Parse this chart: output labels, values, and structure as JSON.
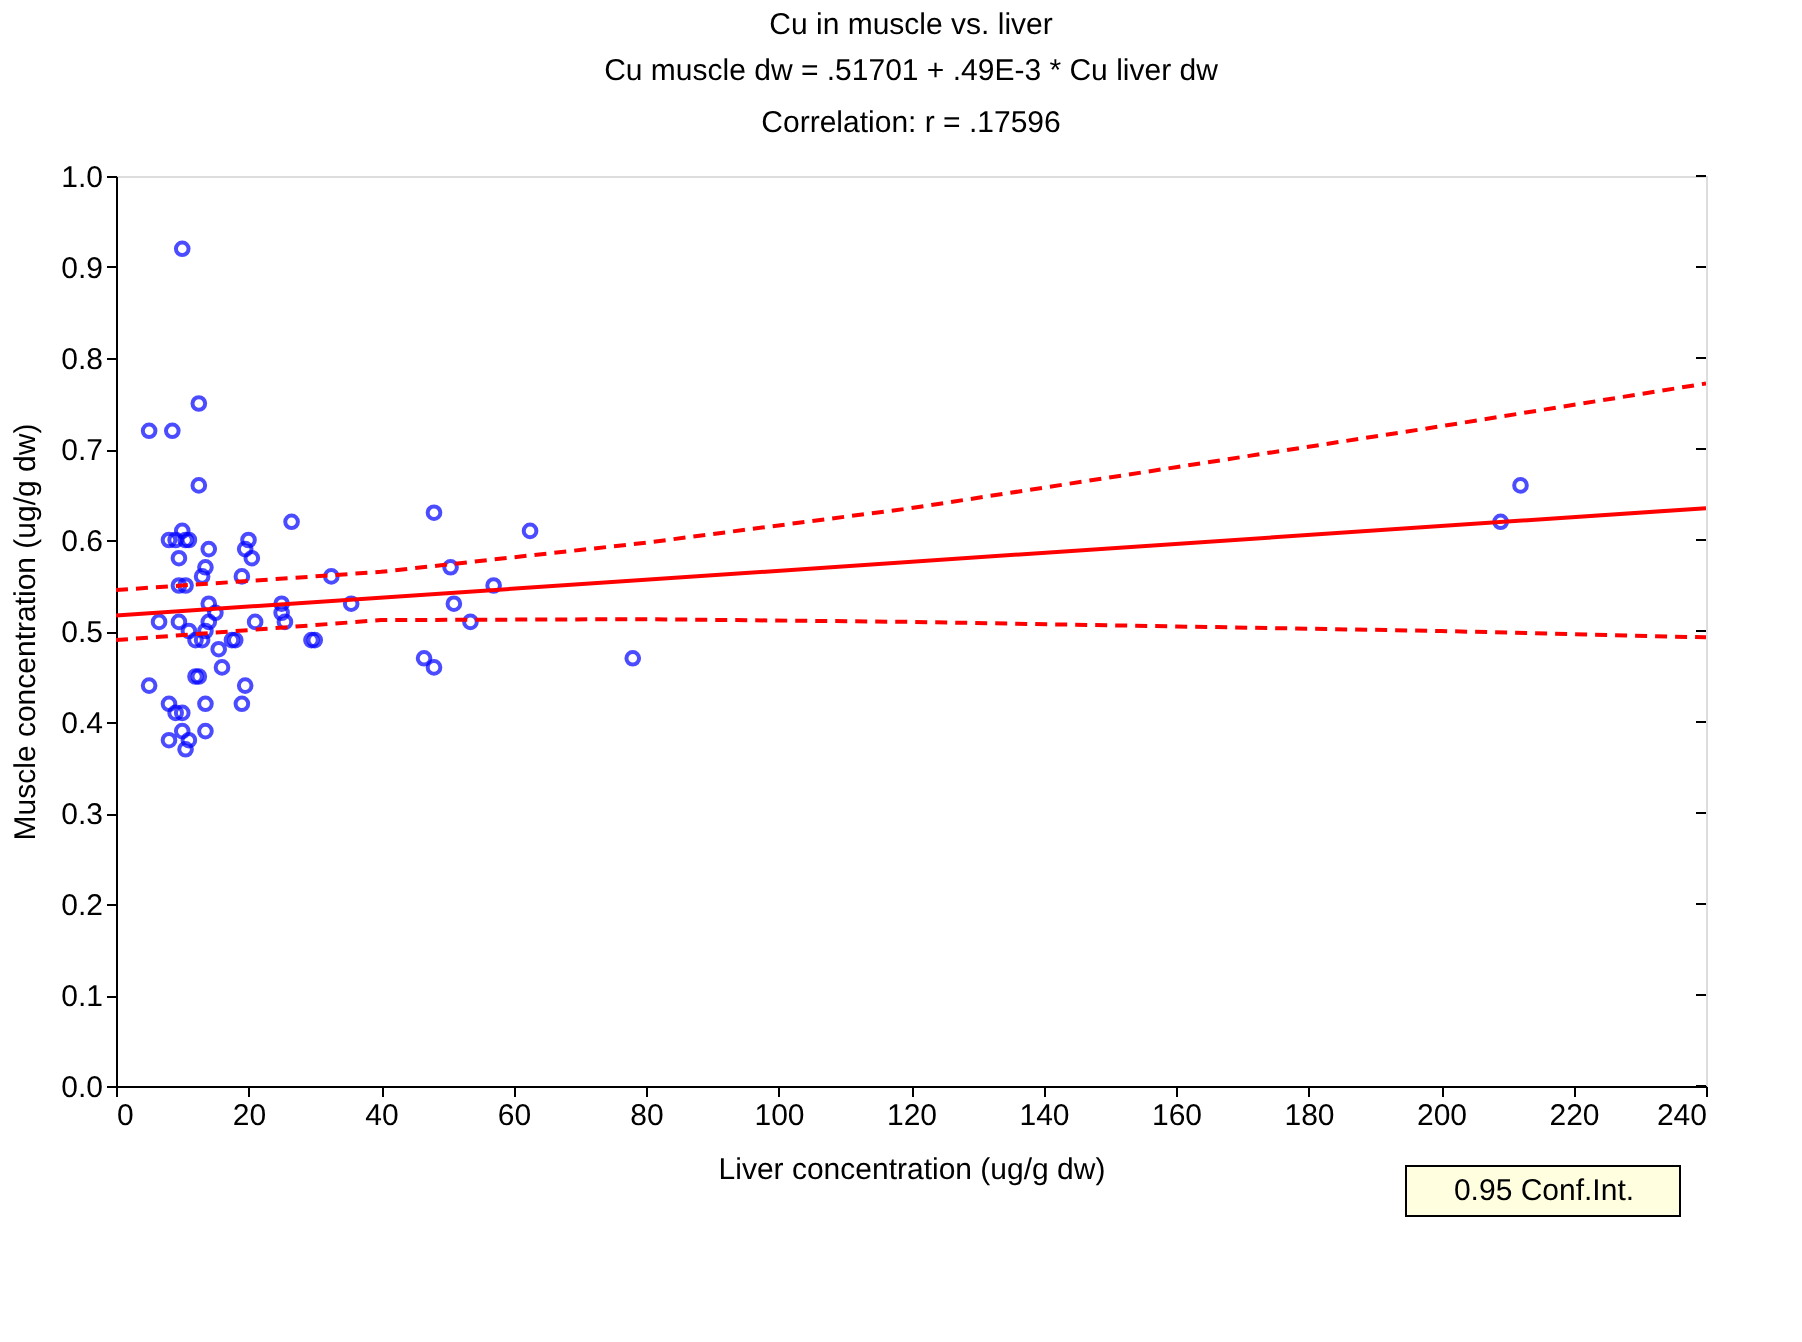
{
  "chart_data": {
    "type": "scatter",
    "title": "Cu in muscle vs. liver",
    "subtitle": "Cu muscle dw = .51701 + .49E-3 * Cu liver dw",
    "annotations": [
      "Correlation: r = .17596"
    ],
    "xlabel": "Liver concentration (ug/g dw)",
    "ylabel": "Muscle concentration (ug/g dw)",
    "xlim": [
      0,
      240
    ],
    "xticks": [
      0,
      20,
      40,
      60,
      80,
      100,
      120,
      140,
      160,
      180,
      200,
      220,
      240
    ],
    "ylim": [
      0,
      1
    ],
    "yticks": [
      {
        "value": 0,
        "label": "0.0"
      },
      0.1,
      0.2,
      0.3,
      0.4,
      0.5,
      0.6,
      0.7,
      0.8,
      0.9,
      {
        "value": 1,
        "label": "1.0"
      }
    ],
    "grid": false,
    "legend": "bottom right",
    "series": [
      {
        "color": "#0000ff",
        "marker": "circle",
        "x": [
          5,
          8.5,
          10,
          12.5,
          12.5,
          5,
          6.5,
          8,
          9,
          9.5,
          10,
          10.5,
          11,
          9.5,
          10.5,
          9.5,
          8,
          9,
          10,
          8,
          10,
          10.5,
          11,
          11,
          12,
          12.5,
          12,
          13,
          13.5,
          13,
          13.5,
          14,
          14,
          14,
          15,
          13.5,
          13.5,
          15.5,
          16,
          17.5,
          18,
          19,
          19.5,
          19,
          19.5,
          20,
          20.5,
          21,
          25,
          25,
          25.5,
          26.5,
          29.5,
          30,
          32.5,
          35.5,
          46.5,
          48,
          48,
          50.5,
          51,
          53.5,
          57,
          62.5,
          78,
          209,
          212
        ],
        "values": [
          0.72,
          0.72,
          0.92,
          0.75,
          0.66,
          0.44,
          0.51,
          0.6,
          0.6,
          0.58,
          0.61,
          0.6,
          0.6,
          0.55,
          0.55,
          0.51,
          0.42,
          0.41,
          0.41,
          0.38,
          0.39,
          0.37,
          0.38,
          0.5,
          0.45,
          0.45,
          0.49,
          0.49,
          0.5,
          0.56,
          0.57,
          0.59,
          0.53,
          0.51,
          0.52,
          0.42,
          0.39,
          0.48,
          0.46,
          0.49,
          0.49,
          0.42,
          0.44,
          0.56,
          0.59,
          0.6,
          0.58,
          0.51,
          0.52,
          0.53,
          0.51,
          0.62,
          0.49,
          0.49,
          0.56,
          0.53,
          0.47,
          0.46,
          0.63,
          0.57,
          0.53,
          0.51,
          0.55,
          0.61,
          0.47,
          0.62,
          0.66
        ]
      },
      {
        "type": "line",
        "color": "#ff0000",
        "line_style": "solid",
        "x": [
          0,
          240
        ],
        "values": [
          0.517,
          0.635
        ]
      },
      {
        "type": "line",
        "name": "0.95 Conf.Int.",
        "color": "#ff0000",
        "line_style": "dashed",
        "x": [
          0,
          40,
          80,
          120,
          160,
          200,
          240
        ],
        "values": [
          0.545,
          0.565,
          0.597,
          0.635,
          0.68,
          0.725,
          0.772
        ]
      },
      {
        "type": "line",
        "color": "#ff0000",
        "line_style": "dashed",
        "x": [
          0,
          40,
          80,
          120,
          160,
          200,
          240
        ],
        "values": [
          0.49,
          0.512,
          0.513,
          0.51,
          0.505,
          0.5,
          0.493
        ]
      }
    ]
  }
}
